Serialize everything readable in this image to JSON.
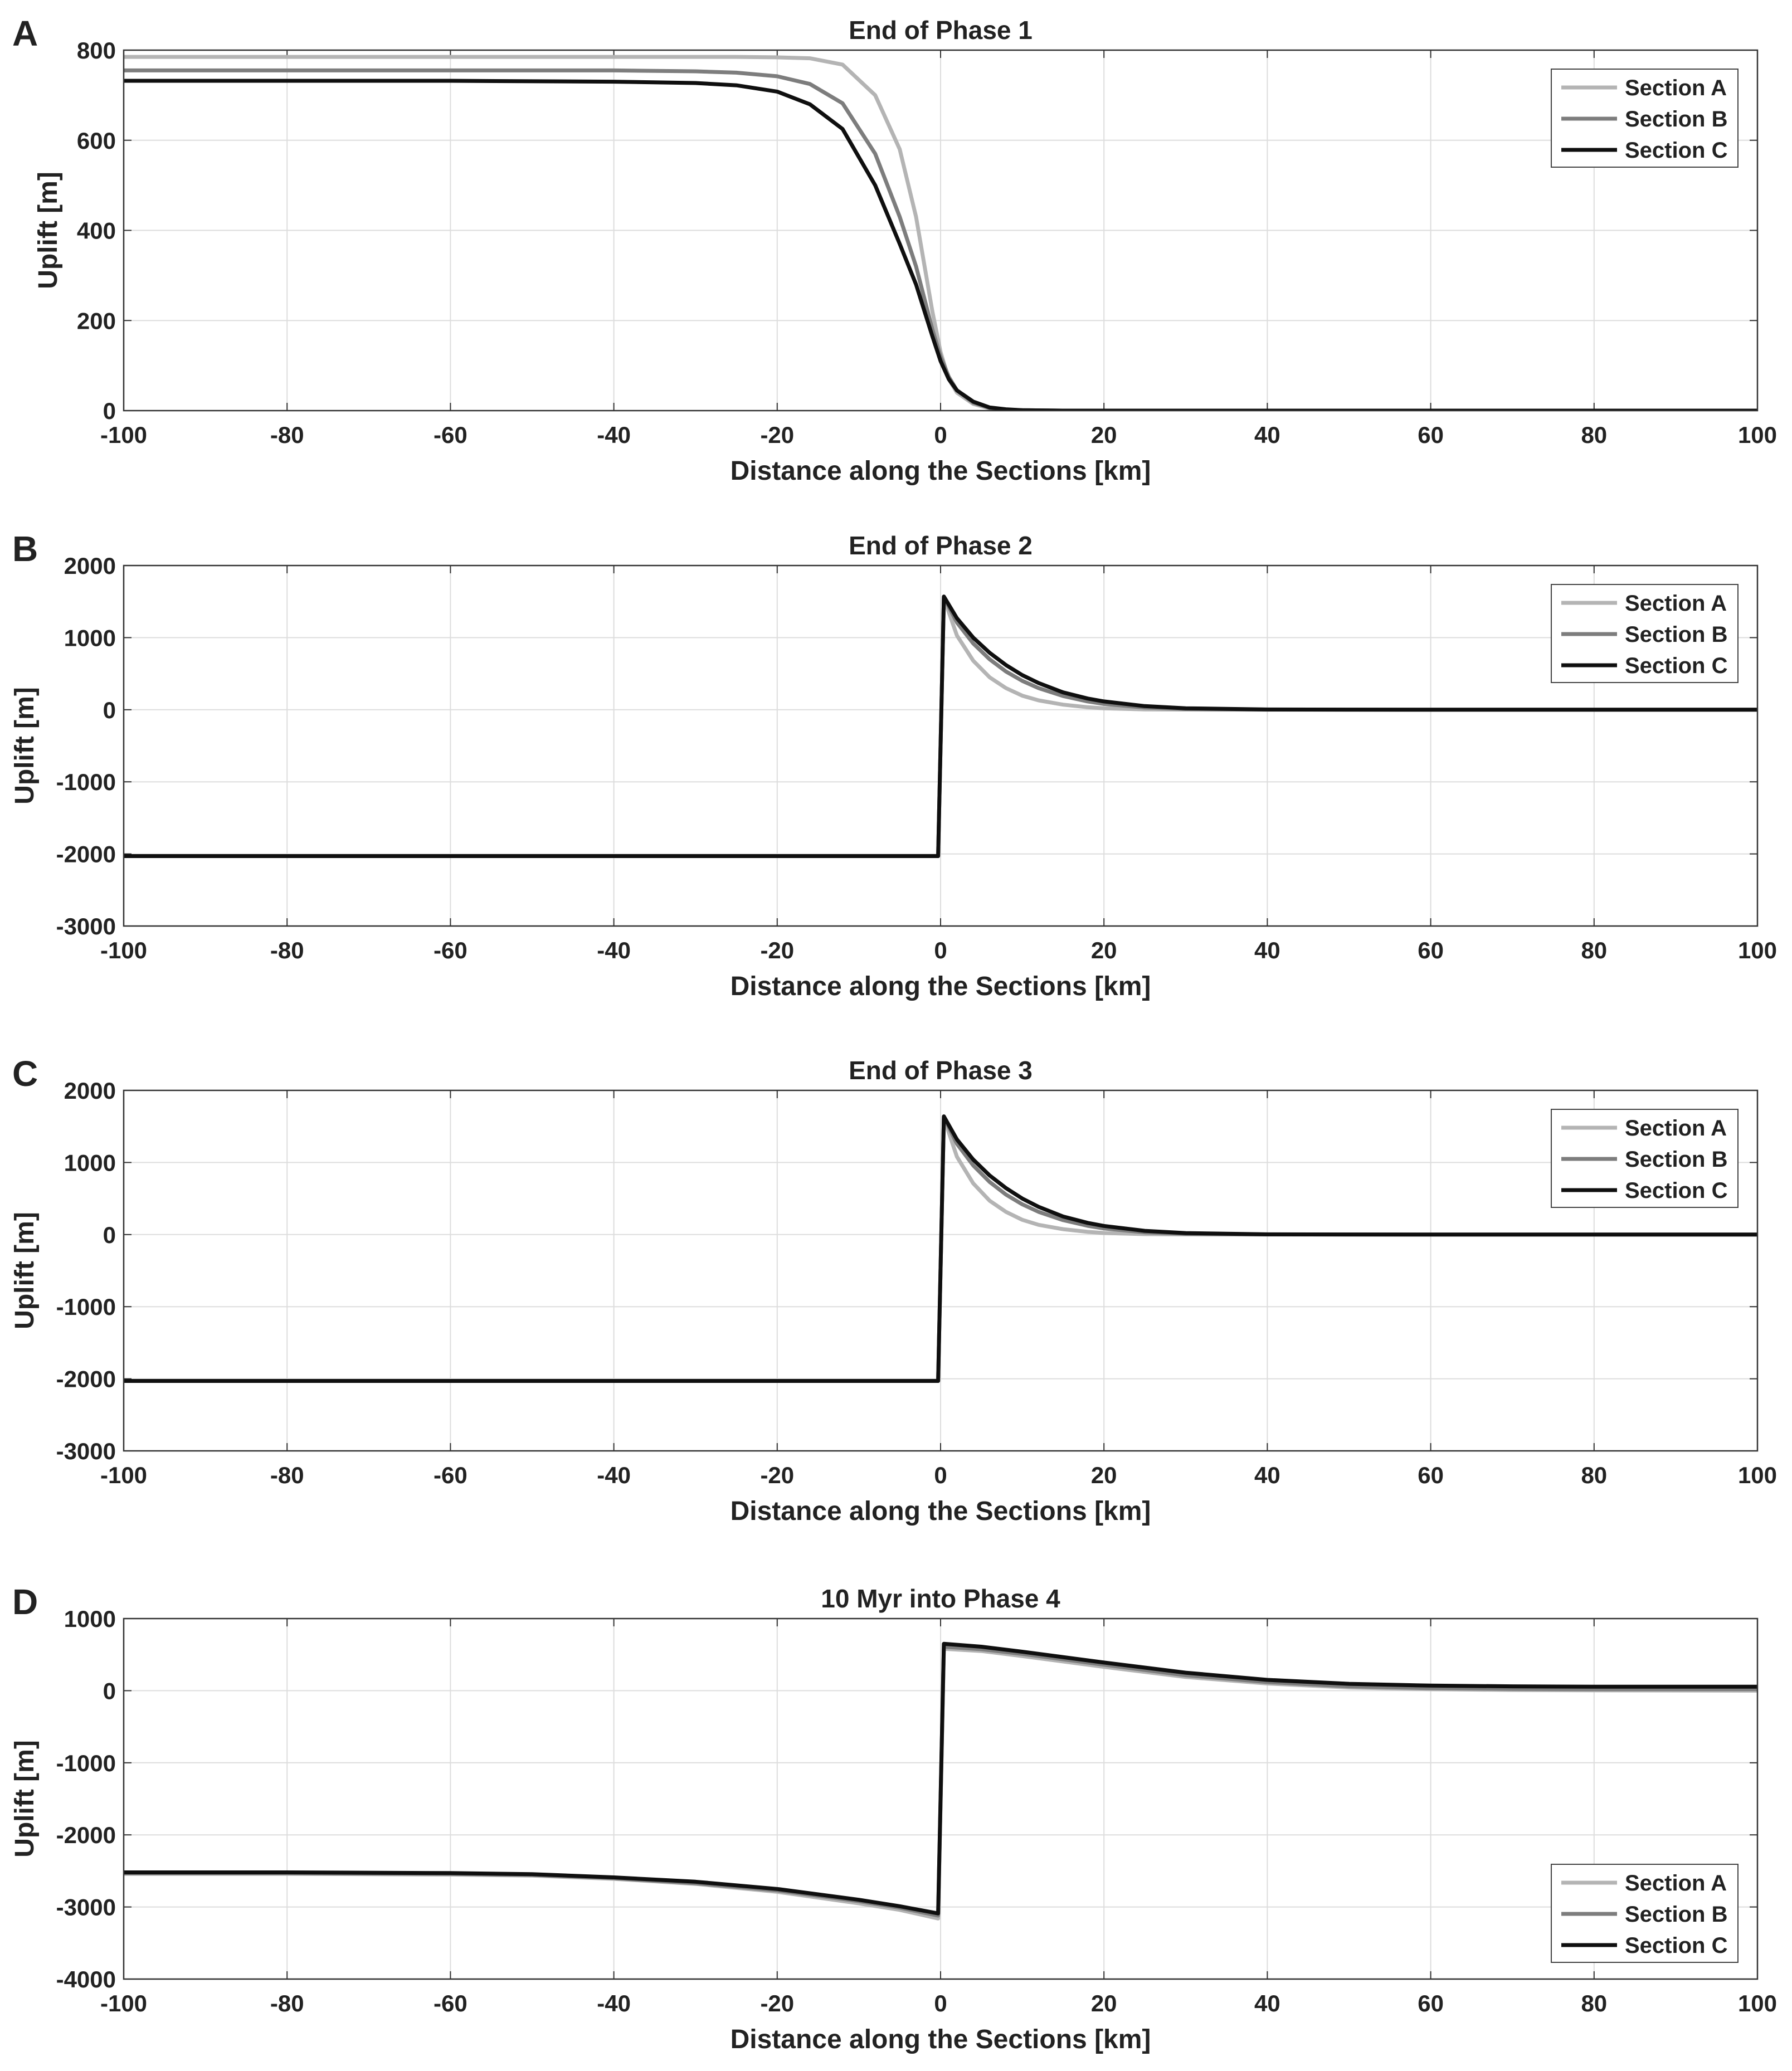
{
  "figure": {
    "colors": {
      "section_a": "#b4b4b4",
      "section_b": "#7d7d7d",
      "section_c": "#0f0f0f",
      "grid": "#dddddd",
      "axis": "#333333"
    }
  },
  "chart_data": [
    {
      "type": "line",
      "panel_letter": "A",
      "title": "End of Phase 1",
      "xlabel": "Distance along the Sections [km]",
      "ylabel": "Uplift [m]",
      "xlim": [
        -100,
        100
      ],
      "ylim": [
        0,
        800
      ],
      "xticks": [
        -100,
        -80,
        -60,
        -40,
        -20,
        0,
        20,
        40,
        60,
        80,
        100
      ],
      "yticks": [
        0,
        200,
        400,
        600,
        800
      ],
      "grid": true,
      "legend_position": "top-right",
      "x": [
        -100,
        -60,
        -40,
        -30,
        -25,
        -20,
        -16,
        -12,
        -8,
        -5,
        -3,
        -1,
        0,
        1,
        2,
        4,
        6,
        8,
        10,
        15,
        20,
        40,
        60,
        80,
        100
      ],
      "series": [
        {
          "name": "Section A",
          "values": [
            785,
            785,
            785,
            785,
            785,
            784,
            782,
            768,
            700,
            580,
            430,
            220,
            130,
            70,
            40,
            15,
            5,
            2,
            1,
            0,
            0,
            0,
            0,
            0,
            0
          ]
        },
        {
          "name": "Section B",
          "values": [
            755,
            755,
            755,
            753,
            750,
            742,
            725,
            682,
            570,
            430,
            320,
            180,
            120,
            75,
            45,
            18,
            6,
            2,
            1,
            0,
            0,
            0,
            0,
            0,
            0
          ]
        },
        {
          "name": "Section C",
          "values": [
            732,
            732,
            730,
            727,
            722,
            708,
            680,
            625,
            500,
            370,
            280,
            165,
            110,
            70,
            45,
            20,
            7,
            3,
            1,
            0,
            0,
            0,
            0,
            0,
            0
          ]
        }
      ]
    },
    {
      "type": "line",
      "panel_letter": "B",
      "title": "End of Phase 2",
      "xlabel": "Distance along the Sections [km]",
      "ylabel": "Uplift [m]",
      "xlim": [
        -100,
        100
      ],
      "ylim": [
        -3000,
        2000
      ],
      "xticks": [
        -100,
        -80,
        -60,
        -40,
        -20,
        0,
        20,
        40,
        60,
        80,
        100
      ],
      "yticks": [
        -3000,
        -2000,
        -1000,
        0,
        1000,
        2000
      ],
      "grid": true,
      "legend_position": "top-right",
      "x": [
        -100,
        -20,
        -0.3,
        0.4,
        2,
        4,
        6,
        8,
        10,
        12,
        15,
        18,
        20,
        25,
        30,
        40,
        60,
        80,
        100
      ],
      "series": [
        {
          "name": "Section A",
          "values": [
            -2030,
            -2030,
            -2030,
            1550,
            1030,
            680,
            450,
            300,
            195,
            130,
            70,
            35,
            20,
            5,
            2,
            0,
            0,
            0,
            0
          ]
        },
        {
          "name": "Section B",
          "values": [
            -2030,
            -2030,
            -2030,
            1560,
            1210,
            920,
            700,
            530,
            400,
            300,
            190,
            115,
            80,
            30,
            10,
            2,
            0,
            0,
            0
          ]
        },
        {
          "name": "Section C",
          "values": [
            -2030,
            -2030,
            -2030,
            1570,
            1270,
            1000,
            790,
            620,
            480,
            370,
            240,
            155,
            115,
            50,
            20,
            3,
            0,
            0,
            0
          ]
        }
      ]
    },
    {
      "type": "line",
      "panel_letter": "C",
      "title": "End of Phase 3",
      "xlabel": "Distance along the Sections [km]",
      "ylabel": "Uplift [m]",
      "xlim": [
        -100,
        100
      ],
      "ylim": [
        -3000,
        2000
      ],
      "xticks": [
        -100,
        -80,
        -60,
        -40,
        -20,
        0,
        20,
        40,
        60,
        80,
        100
      ],
      "yticks": [
        -3000,
        -2000,
        -1000,
        0,
        1000,
        2000
      ],
      "grid": true,
      "legend_position": "top-right",
      "x": [
        -100,
        -20,
        -0.3,
        0.4,
        2,
        4,
        6,
        8,
        10,
        12,
        15,
        18,
        20,
        25,
        30,
        40,
        60,
        80,
        100
      ],
      "series": [
        {
          "name": "Section A",
          "values": [
            -2030,
            -2030,
            -2030,
            1620,
            1080,
            710,
            470,
            315,
            205,
            135,
            75,
            38,
            22,
            6,
            2,
            0,
            0,
            0,
            0
          ]
        },
        {
          "name": "Section B",
          "values": [
            -2030,
            -2030,
            -2030,
            1630,
            1260,
            960,
            730,
            555,
            420,
            315,
            200,
            122,
            85,
            32,
            11,
            2,
            0,
            0,
            0
          ]
        },
        {
          "name": "Section C",
          "values": [
            -2030,
            -2030,
            -2030,
            1640,
            1320,
            1040,
            820,
            645,
            500,
            385,
            250,
            162,
            120,
            52,
            21,
            3,
            0,
            0,
            0
          ]
        }
      ]
    },
    {
      "type": "line",
      "panel_letter": "D",
      "title": "10 Myr into Phase 4",
      "xlabel": "Distance along the Sections [km]",
      "ylabel": "Uplift [m]",
      "xlim": [
        -100,
        100
      ],
      "ylim": [
        -4000,
        1000
      ],
      "xticks": [
        -100,
        -80,
        -60,
        -40,
        -20,
        0,
        20,
        40,
        60,
        80,
        100
      ],
      "yticks": [
        -4000,
        -3000,
        -2000,
        -1000,
        0,
        1000
      ],
      "grid": true,
      "legend_position": "bottom-right",
      "x": [
        -100,
        -80,
        -60,
        -50,
        -40,
        -30,
        -20,
        -10,
        -5,
        -0.3,
        0.4,
        5,
        10,
        20,
        30,
        40,
        50,
        60,
        70,
        80,
        100
      ],
      "series": [
        {
          "name": "Section A",
          "values": [
            -2540,
            -2540,
            -2550,
            -2565,
            -2610,
            -2680,
            -2790,
            -2950,
            -3040,
            -3160,
            580,
            550,
            480,
            330,
            190,
            100,
            45,
            20,
            10,
            5,
            0
          ]
        },
        {
          "name": "Section B",
          "values": [
            -2530,
            -2530,
            -2540,
            -2555,
            -2600,
            -2670,
            -2770,
            -2920,
            -3010,
            -3120,
            610,
            575,
            510,
            360,
            215,
            120,
            60,
            35,
            25,
            20,
            20
          ]
        },
        {
          "name": "Section C",
          "values": [
            -2520,
            -2520,
            -2530,
            -2545,
            -2590,
            -2650,
            -2750,
            -2900,
            -2990,
            -3090,
            650,
            610,
            540,
            390,
            250,
            150,
            95,
            70,
            60,
            55,
            55
          ]
        }
      ]
    }
  ]
}
